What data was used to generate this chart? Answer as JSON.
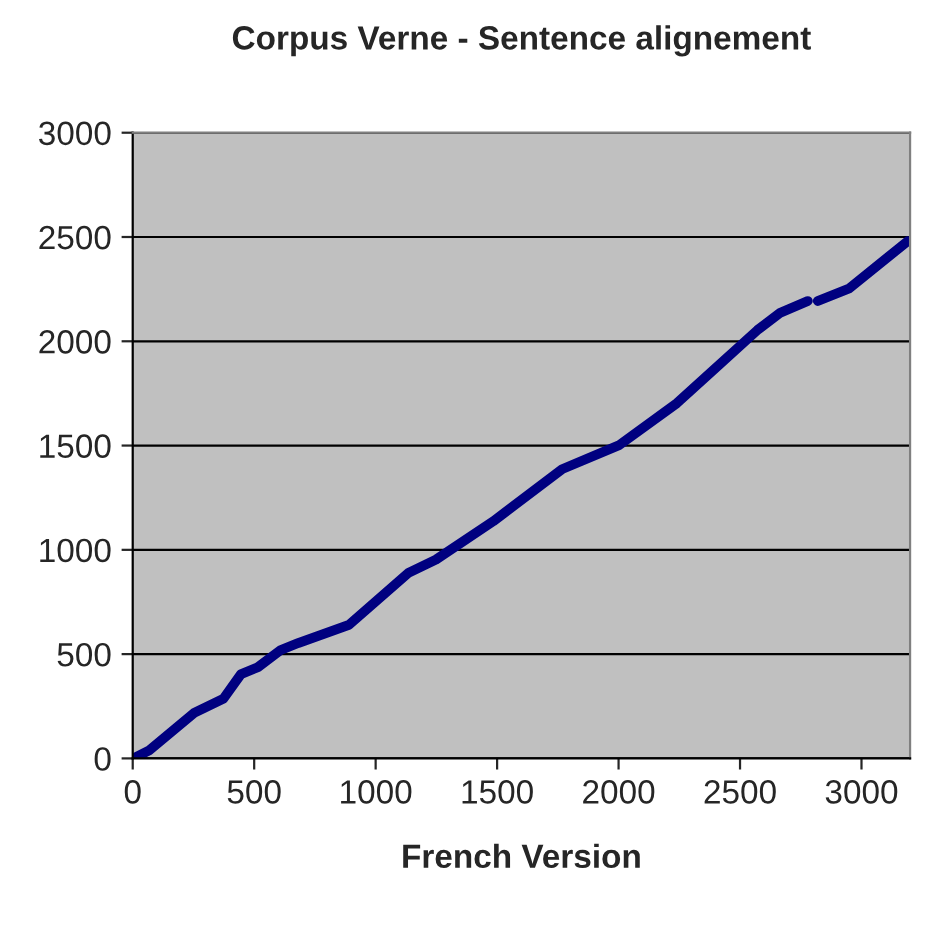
{
  "chart_data": {
    "type": "line",
    "title": "Corpus Verne - Sentence alignement",
    "xlabel": "French Version",
    "xlim": [
      0,
      3200
    ],
    "xticks": [
      0,
      500,
      1000,
      1500,
      2000,
      2500,
      3000
    ],
    "ylim": [
      0,
      3000
    ],
    "yticks": [
      0,
      500,
      1000,
      1500,
      2000,
      2500,
      3000
    ],
    "grid": "y",
    "marker": "none",
    "line_style": "solid",
    "series": [
      {
        "color": "#000080",
        "x": [
          7,
          66,
          255,
          374,
          445,
          515,
          610,
          681,
          890,
          1135,
          1248,
          1484,
          1768,
          2004,
          2240,
          2382,
          2571,
          2666,
          2779,
          2800,
          2820,
          2949,
          3190
        ],
        "values": [
          3,
          37,
          220,
          287,
          403,
          437,
          520,
          553,
          640,
          890,
          953,
          1137,
          1387,
          1503,
          1703,
          1853,
          2053,
          2137,
          2193,
          null,
          2193,
          2253,
          2480
        ]
      }
    ]
  }
}
